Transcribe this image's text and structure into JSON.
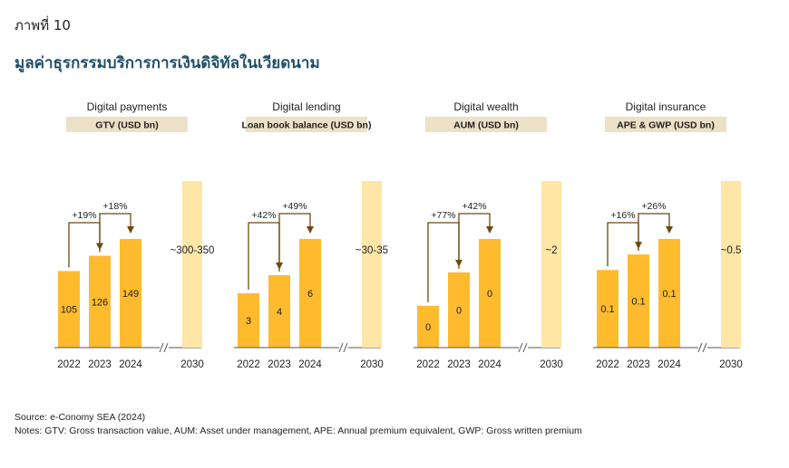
{
  "figure_label": "ภาพที่ 10",
  "title": "มูลค่าธุรกรรมบริการการเงินดิจิทัลในเวียดนาม",
  "source": "Source: e-Conomy SEA (2024)",
  "notes": "Notes: GTV: Gross transaction value, AUM: Asset under management, APE: Annual premium equivalent, GWP: Gross written premium",
  "colors": {
    "bar": "#fdbb2d",
    "projection": "#fde6a6",
    "header_box": "#ece0c6",
    "arrow": "#6b4a12",
    "title": "#1f4f6b"
  },
  "chart_data": [
    {
      "type": "bar",
      "title": "Digital payments",
      "metric": "GTV (USD bn)",
      "categories": [
        "2022",
        "2023",
        "2024"
      ],
      "values": [
        105,
        126,
        149
      ],
      "labels": [
        "105",
        "126",
        "149"
      ],
      "growth": [
        "+19%",
        "+18%"
      ],
      "projection": {
        "year": "2030",
        "label": "~300-350"
      }
    },
    {
      "type": "bar",
      "title": "Digital lending",
      "metric": "Loan book balance (USD bn)",
      "categories": [
        "2022",
        "2023",
        "2024"
      ],
      "values": [
        3,
        4,
        6
      ],
      "labels": [
        "3",
        "4",
        "6"
      ],
      "growth": [
        "+42%",
        "+49%"
      ],
      "projection": {
        "year": "2030",
        "label": "~30-35"
      }
    },
    {
      "type": "bar",
      "title": "Digital wealth",
      "metric": "AUM (USD bn)",
      "categories": [
        "2022",
        "2023",
        "2024"
      ],
      "values": [
        0.05,
        0.09,
        0.13
      ],
      "labels": [
        "0",
        "0",
        "0"
      ],
      "growth": [
        "+77%",
        "+42%"
      ],
      "projection": {
        "year": "2030",
        "label": "~2"
      }
    },
    {
      "type": "bar",
      "title": "Digital insurance",
      "metric": "APE & GWP (USD bn)",
      "categories": [
        "2022",
        "2023",
        "2024"
      ],
      "values": [
        0.1,
        0.12,
        0.14
      ],
      "labels": [
        "0.1",
        "0.1",
        "0.1"
      ],
      "growth": [
        "+16%",
        "+26%"
      ],
      "projection": {
        "year": "2030",
        "label": "~0.5"
      }
    }
  ]
}
